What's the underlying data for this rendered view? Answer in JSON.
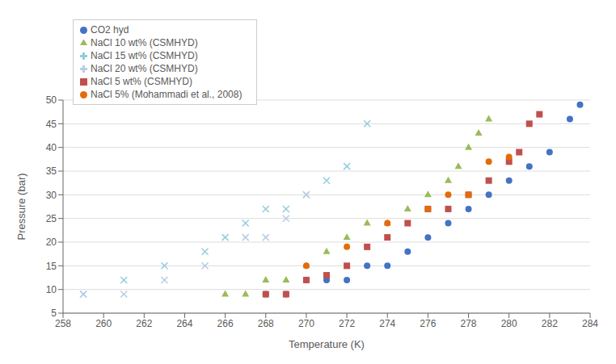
{
  "chart_data": {
    "type": "scatter",
    "title": "",
    "xlabel": "Temperature (K)",
    "ylabel": "Pressure (bar)",
    "xlim": [
      258,
      284
    ],
    "ylim": [
      5,
      50
    ],
    "xticks": [
      258,
      260,
      262,
      264,
      266,
      268,
      270,
      272,
      274,
      276,
      278,
      280,
      282,
      284
    ],
    "yticks": [
      5,
      10,
      15,
      20,
      25,
      30,
      35,
      40,
      45,
      50
    ],
    "grid": true,
    "legend": "upper left",
    "series": [
      {
        "name": "CO2 hyd",
        "color": "#4472c4",
        "marker": "circle",
        "x": [
          268,
          269,
          270,
          271,
          272,
          273,
          274,
          275,
          276,
          277,
          278,
          279,
          280,
          281,
          282,
          283,
          283.5
        ],
        "values": [
          9,
          9,
          12,
          12,
          12,
          15,
          15,
          18,
          21,
          24,
          27,
          30,
          33,
          36,
          39,
          46,
          49
        ]
      },
      {
        "name": "NaCl 5 wt% (CSMHYD)",
        "color": "#c0504d",
        "marker": "square",
        "x": [
          268,
          269,
          270,
          271,
          272,
          273,
          274,
          275,
          276,
          277,
          278,
          279,
          280,
          280.5,
          281,
          281.5
        ],
        "values": [
          9,
          9,
          12,
          13,
          15,
          19,
          21,
          24,
          27,
          27,
          30,
          33,
          37,
          39,
          45,
          47
        ]
      },
      {
        "name": "NaCl 10 wt% (CSMHYD)",
        "color": "#9bbb59",
        "marker": "triangle",
        "x": [
          266,
          267,
          268,
          269,
          270,
          271,
          272,
          273,
          274,
          275,
          276,
          277,
          277.5,
          278,
          278.5,
          279
        ],
        "values": [
          9,
          9,
          12,
          12,
          15,
          18,
          21,
          24,
          24,
          27,
          30,
          33,
          36,
          40,
          43,
          46
        ]
      },
      {
        "name": "NaCl 15 wt% (CSMHYD)",
        "color": "#92cddc",
        "marker": "x",
        "x": [
          259,
          261,
          263,
          265,
          266,
          267,
          268,
          269,
          270,
          271,
          272,
          273
        ],
        "values": [
          9,
          12,
          15,
          18,
          21,
          24,
          27,
          27,
          30,
          33,
          36,
          45
        ]
      },
      {
        "name": "NaCl 20 wt% (CSMHYD)",
        "color": "#b8cce4",
        "marker": "x",
        "x": [
          259,
          261,
          263,
          265,
          267,
          268,
          269,
          270
        ],
        "values": [
          9,
          9,
          12,
          15,
          21,
          21,
          25,
          30
        ]
      },
      {
        "name": "NaCl 5% (Mohammadi et al., 2008)",
        "color": "#e36c09",
        "marker": "circle",
        "x": [
          270,
          272,
          274,
          276,
          277,
          278,
          279,
          280
        ],
        "values": [
          15,
          19,
          24,
          27,
          30,
          30,
          37,
          38
        ]
      }
    ]
  }
}
